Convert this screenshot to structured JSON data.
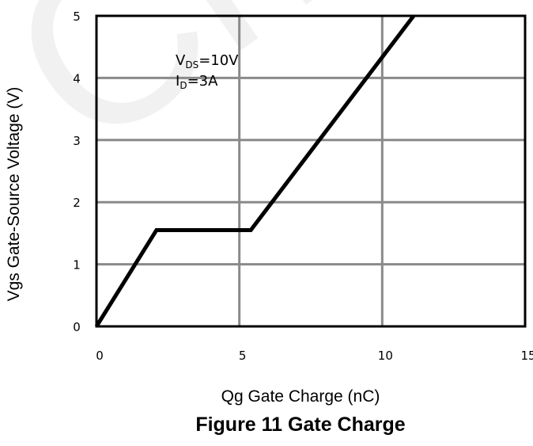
{
  "watermark": "Chip",
  "chart_data": {
    "type": "line",
    "title": "Figure 11 Gate Charge",
    "xlabel": "Qg Gate Charge (nC)",
    "ylabel": "Vgs Gate-Source Voltage (V)",
    "xlim": [
      0,
      15
    ],
    "ylim": [
      0,
      5
    ],
    "xticks": [
      "0",
      "5",
      "10",
      "15"
    ],
    "yticks": [
      "0",
      "1",
      "2",
      "3",
      "4",
      "5"
    ],
    "grid": true,
    "annotation": {
      "line1_main": "V",
      "line1_sub": "DS",
      "line1_value": "=10V",
      "line2_main": "I",
      "line2_sub": "D",
      "line2_value": "=3A"
    },
    "series": [
      {
        "x": [
          0,
          2.1,
          5.4,
          11.1
        ],
        "y": [
          0,
          1.55,
          1.55,
          5.0
        ]
      }
    ]
  }
}
